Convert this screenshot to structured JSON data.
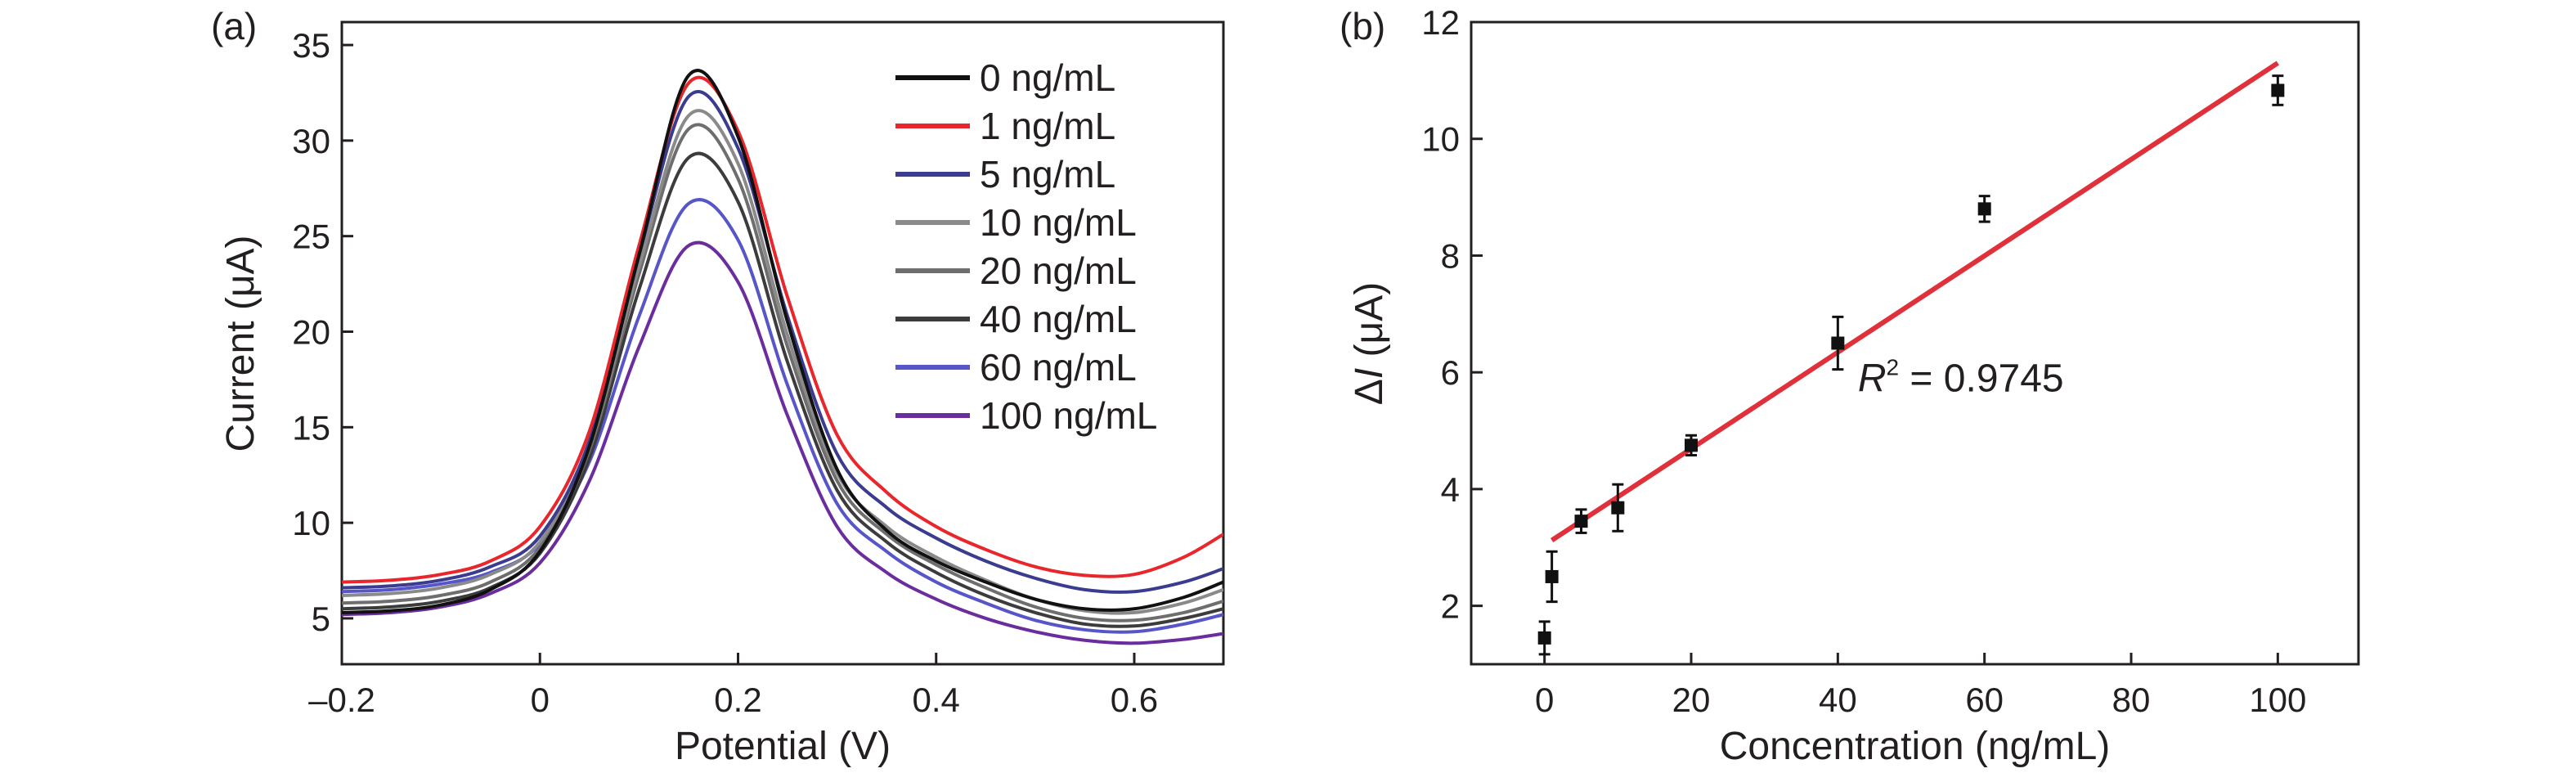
{
  "chart_data": [
    {
      "panel_label": "(a)",
      "type": "line",
      "xlabel": "Potential (V)",
      "ylabel": "Current (μA)",
      "xlim": [
        -0.2,
        0.69
      ],
      "ylim": [
        2.6,
        36.2
      ],
      "xticks": [
        -0.2,
        0,
        0.2,
        0.4,
        0.6
      ],
      "xtick_labels": [
        "–0.2",
        "0",
        "0.2",
        "0.4",
        "0.6"
      ],
      "yticks": [
        5,
        10,
        15,
        20,
        25,
        30,
        35
      ],
      "yticks_labels": [
        "5",
        "10",
        "15",
        "20",
        "25",
        "30",
        "35"
      ],
      "grid": false,
      "legend_position": "top-right",
      "x": [
        -0.2,
        -0.15,
        -0.1,
        -0.05,
        0,
        0.05,
        0.1,
        0.15,
        0.2,
        0.25,
        0.3,
        0.35,
        0.4,
        0.45,
        0.5,
        0.55,
        0.6,
        0.65,
        0.69
      ],
      "series": [
        {
          "name": "0 ng/mL",
          "color": "#111111",
          "values": [
            5.3,
            5.4,
            5.7,
            6.5,
            8.5,
            14.0,
            24.0,
            33.4,
            30.2,
            20.5,
            12.8,
            9.6,
            8.0,
            6.9,
            6.0,
            5.5,
            5.5,
            6.1,
            6.9
          ]
        },
        {
          "name": "1 ng/mL",
          "color": "#e8262b",
          "values": [
            6.9,
            7.0,
            7.3,
            8.0,
            9.8,
            14.8,
            24.5,
            33.0,
            30.5,
            21.8,
            14.6,
            11.6,
            9.8,
            8.6,
            7.7,
            7.25,
            7.3,
            8.2,
            9.4
          ]
        },
        {
          "name": "5 ng/mL",
          "color": "#3b3b8f",
          "values": [
            6.6,
            6.7,
            7.0,
            7.7,
            9.3,
            14.3,
            24.0,
            32.3,
            29.6,
            20.8,
            13.6,
            10.8,
            9.2,
            8.0,
            7.1,
            6.5,
            6.4,
            6.9,
            7.6
          ]
        },
        {
          "name": "10 ng/mL",
          "color": "#8a8a8a",
          "values": [
            6.2,
            6.3,
            6.6,
            7.3,
            9.0,
            14.0,
            23.4,
            31.3,
            28.8,
            19.8,
            12.6,
            9.8,
            8.2,
            7.0,
            6.0,
            5.4,
            5.3,
            5.8,
            6.5
          ]
        },
        {
          "name": "20 ng/mL",
          "color": "#6e6e6e",
          "values": [
            5.8,
            5.9,
            6.2,
            6.9,
            8.7,
            13.8,
            23.0,
            30.6,
            28.0,
            19.2,
            12.2,
            9.4,
            7.8,
            6.6,
            5.6,
            5.0,
            4.9,
            5.3,
            5.9
          ]
        },
        {
          "name": "40 ng/mL",
          "color": "#3c3c3c",
          "values": [
            5.5,
            5.6,
            5.9,
            6.6,
            8.4,
            13.4,
            22.2,
            29.1,
            26.8,
            18.4,
            11.7,
            9.0,
            7.4,
            6.2,
            5.3,
            4.7,
            4.6,
            5.0,
            5.5
          ]
        },
        {
          "name": "60 ng/mL",
          "color": "#5656c8",
          "values": [
            6.4,
            6.5,
            6.8,
            7.4,
            8.9,
            13.2,
            20.8,
            26.7,
            24.8,
            17.2,
            11.0,
            8.5,
            6.9,
            5.8,
            4.9,
            4.4,
            4.3,
            4.7,
            5.2
          ]
        },
        {
          "name": "100 ng/mL",
          "color": "#6b2d9e",
          "values": [
            5.2,
            5.3,
            5.6,
            6.3,
            7.9,
            12.2,
            19.2,
            24.5,
            22.6,
            15.6,
            9.8,
            7.4,
            6.0,
            5.0,
            4.3,
            3.85,
            3.7,
            3.9,
            4.2
          ]
        }
      ]
    },
    {
      "panel_label": "(b)",
      "type": "scatter",
      "xlabel": "Concentration (ng/mL)",
      "ylabel_symbol": "Δ",
      "ylabel_italic": "I",
      "ylabel_unit": " (μA)",
      "xlim": [
        -10,
        111
      ],
      "ylim": [
        1,
        12
      ],
      "xticks": [
        0,
        20,
        40,
        60,
        80,
        100
      ],
      "xtick_labels": [
        "0",
        "20",
        "40",
        "60",
        "80",
        "100"
      ],
      "yticks": [
        2,
        4,
        6,
        8,
        10,
        12
      ],
      "ytick_labels": [
        "2",
        "4",
        "6",
        "8",
        "10",
        "12"
      ],
      "grid": false,
      "points": {
        "color": "#111111",
        "x": [
          0,
          1,
          5,
          10,
          20,
          40,
          60,
          100
        ],
        "y": [
          1.45,
          2.5,
          3.45,
          3.68,
          4.75,
          6.5,
          8.8,
          10.83
        ],
        "yerr": [
          0.28,
          0.43,
          0.2,
          0.4,
          0.17,
          0.45,
          0.22,
          0.25
        ]
      },
      "fit": {
        "type": "linear",
        "color": "#e0303a",
        "slope": 0.0826,
        "intercept": 3.04,
        "x_range": [
          1,
          100
        ]
      },
      "annotation": {
        "italic": "R",
        "sup": "2",
        "text": " = 0.9745",
        "x": 55,
        "y": 5.9
      }
    }
  ]
}
